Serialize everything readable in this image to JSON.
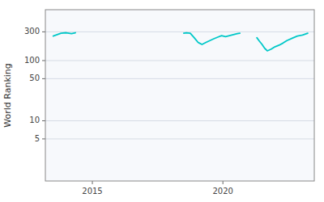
{
  "chart_data": {
    "type": "line",
    "ylabel": "World Ranking",
    "x": [
      2013.5,
      2013.65,
      2013.8,
      2014.0,
      2014.2,
      2014.35,
      null,
      2018.5,
      2018.6,
      2018.75,
      2018.9,
      2019.05,
      2019.1,
      2019.2,
      2019.35,
      2019.5,
      2019.65,
      2019.8,
      2019.95,
      2020.1,
      2020.25,
      2020.4,
      2020.55,
      2020.65,
      null,
      2021.3,
      2021.4,
      2021.5,
      2021.6,
      2021.7,
      2021.85,
      2022.0,
      2022.15,
      2022.3,
      2022.45,
      2022.65,
      2022.85,
      2023.05,
      2023.25
    ],
    "series": [
      {
        "color": "#00c8c8",
        "values": [
          255,
          270,
          285,
          290,
          280,
          290,
          null,
          285,
          290,
          285,
          240,
          200,
          195,
          185,
          200,
          215,
          230,
          245,
          260,
          250,
          260,
          270,
          280,
          285,
          null,
          240,
          210,
          185,
          160,
          145,
          155,
          170,
          180,
          195,
          215,
          235,
          255,
          265,
          285
        ]
      }
    ],
    "xlim": [
      2013.2,
      2023.5
    ],
    "xticks": [
      2015,
      2020
    ],
    "ylim": [
      1.0,
      700
    ],
    "yticks": [
      5,
      10,
      50,
      100,
      300
    ],
    "log": "y",
    "grid": true
  }
}
